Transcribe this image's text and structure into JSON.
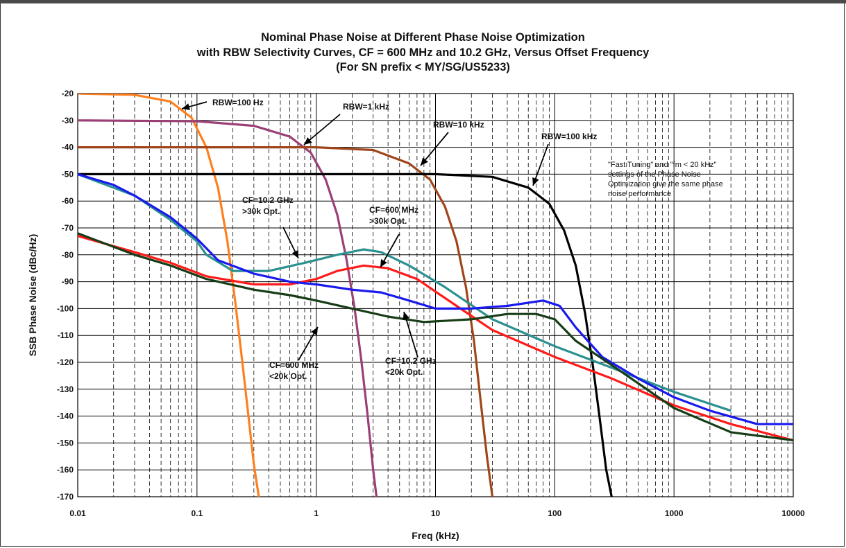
{
  "chart_data": {
    "type": "line",
    "title": [
      "Nominal Phase Noise at Different Phase Noise Optimization",
      "with RBW Selectivity Curves, CF = 600 MHz and 10.2 GHz, Versus Offset Frequency",
      "(For SN prefix < MY/SG/US5233)"
    ],
    "xlabel": "Freq (kHz)",
    "ylabel": "SSB Phase Noise (dBc/Hz)",
    "xscale": "log",
    "xlim": [
      0.01,
      10000
    ],
    "ylim": [
      -170,
      -20
    ],
    "grid": true,
    "x_ticks": [
      "0.01",
      "0.1",
      "1",
      "10",
      "100",
      "1000",
      "10000"
    ],
    "y_ticks": [
      "-20",
      "-30",
      "-40",
      "-50",
      "-60",
      "-70",
      "-80",
      "-90",
      "-100",
      "-110",
      "-120",
      "-130",
      "-140",
      "-150",
      "-160",
      "-170"
    ],
    "series": [
      {
        "name": "RBW=100 Hz",
        "color": "#ff7f1e",
        "x": [
          0.01,
          0.03,
          0.06,
          0.09,
          0.12,
          0.15,
          0.18,
          0.21,
          0.24,
          0.27,
          0.3,
          0.33
        ],
        "y": [
          -20,
          -20.5,
          -23,
          -29,
          -40,
          -55,
          -75,
          -98,
          -120,
          -140,
          -158,
          -170
        ]
      },
      {
        "name": "RBW=1 kHz",
        "color": "#9b3f76",
        "x": [
          0.01,
          0.1,
          0.3,
          0.6,
          0.9,
          1.2,
          1.5,
          1.8,
          2.1,
          2.4,
          2.7,
          3.0,
          3.2
        ],
        "y": [
          -30,
          -30.3,
          -32,
          -36,
          -42,
          -52,
          -65,
          -82,
          -100,
          -120,
          -140,
          -160,
          -170
        ]
      },
      {
        "name": "RBW=10 kHz",
        "color": "#a0451a",
        "x": [
          0.01,
          1,
          3,
          6,
          9,
          12,
          15,
          18,
          21,
          24,
          27,
          30
        ],
        "y": [
          -40,
          -40,
          -41,
          -46,
          -52,
          -62,
          -75,
          -92,
          -112,
          -135,
          -155,
          -170
        ]
      },
      {
        "name": "RBW=100 kHz",
        "color": "#000000",
        "x": [
          0.01,
          10,
          30,
          60,
          90,
          120,
          150,
          180,
          210,
          240,
          270,
          300
        ],
        "y": [
          -50,
          -50,
          -51,
          -55,
          -61,
          -71,
          -84,
          -102,
          -122,
          -142,
          -160,
          -170
        ]
      },
      {
        "name": "CF=10.2 GHz >30k Opt.",
        "color": "#2a9090",
        "x": [
          0.01,
          0.03,
          0.06,
          0.1,
          0.12,
          0.2,
          0.4,
          0.8,
          1.5,
          2.5,
          3.5,
          6,
          12,
          30,
          100,
          300,
          1000,
          3000
        ],
        "y": [
          -50,
          -58,
          -67,
          -75,
          -80,
          -86,
          -86,
          -83,
          -80,
          -78,
          -79,
          -84,
          -92,
          -104,
          -114,
          -122,
          -131,
          -138
        ]
      },
      {
        "name": "CF=600 MHz >30k Opt.",
        "color": "#ff1a1a",
        "x": [
          0.01,
          0.03,
          0.06,
          0.12,
          0.3,
          0.6,
          1,
          1.5,
          2.5,
          4,
          7,
          15,
          30,
          100,
          300,
          1000,
          3000,
          10000
        ],
        "y": [
          -73,
          -79,
          -83,
          -88,
          -91,
          -91,
          -89,
          -86,
          -84,
          -85,
          -89,
          -99,
          -108,
          -118,
          -126,
          -136,
          -143,
          -149
        ]
      },
      {
        "name": "CF=10.2 GHz <20k Opt.",
        "color": "#1a1aee",
        "x": [
          0.01,
          0.02,
          0.03,
          0.06,
          0.1,
          0.15,
          0.3,
          0.6,
          1,
          2,
          3.5,
          6,
          10,
          20,
          40,
          80,
          110,
          150,
          250,
          500,
          1000,
          2000,
          5000,
          10000
        ],
        "y": [
          -50,
          -54,
          -58,
          -66,
          -74,
          -82,
          -87,
          -90,
          -91,
          -93,
          -94,
          -97,
          -100,
          -100,
          -99,
          -97,
          -99,
          -107,
          -118,
          -126,
          -133,
          -138,
          -143,
          -143
        ]
      },
      {
        "name": "CF=600 MHz <20k Opt.",
        "color": "#163d16",
        "x": [
          0.01,
          0.03,
          0.06,
          0.12,
          0.3,
          0.6,
          1,
          2,
          4,
          8,
          20,
          40,
          70,
          100,
          150,
          300,
          1000,
          3000,
          10000
        ],
        "y": [
          -72,
          -80,
          -84,
          -89,
          -93,
          -95,
          -97,
          -100,
          -103,
          -105,
          -104,
          -102,
          -102,
          -104,
          -112,
          -121,
          -137,
          -146,
          -149
        ]
      }
    ],
    "annotations": [
      [
        "RBW=100 Hz"
      ],
      [
        "RBW=1 kHz"
      ],
      [
        "RBW=10 kHz"
      ],
      [
        "RBW=100 kHz"
      ],
      [
        "CF=10.2 GHz",
        ">30k Opt."
      ],
      [
        "CF=600 MHz",
        ">30k Opt."
      ],
      [
        "CF=600 MHz",
        "<20k Opt."
      ],
      [
        "CF=10.2 GHz",
        "<20k Opt."
      ]
    ],
    "note": [
      "\"Fast Tuning\" and \"fm < 20 kHz\"",
      "settings of the Phase Noise",
      "Optimization give the same phase",
      "noise performance"
    ]
  }
}
